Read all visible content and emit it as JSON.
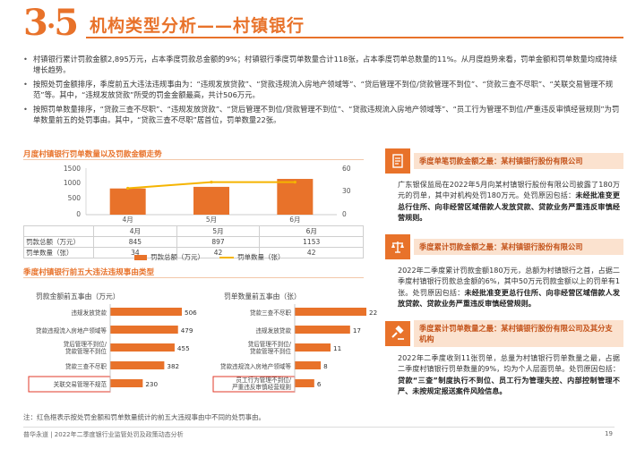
{
  "header": {
    "section_number": "3",
    "section_sub": "5",
    "title": "机构类型分析——村镇银行"
  },
  "bullets": [
    "村镇银行累计罚款金额2,895万元，占本季度罚款总金额的9%；村镇银行季度罚单数量合计118张，占本季度罚单总数量的11%。从月度趋势来看，罚单金额和罚单数量均成持续增长趋势。",
    "按照处罚金额排序，季度前五大违法违规事由为：“违规发放贷款”、“贷款违规流入房地产领域等”、“贷后管理不到位/贷款管理不到位”、“贷款三查不尽职”、“关联交易管理不规范”等。其中，“违规发放贷款”所受的罚金金额最高，共计506万元。",
    "按照罚单数量排序，“贷款三查不尽职”、“违规发放贷款”、“贷后管理不到位/贷款管理不到位”、“贷款违规流入房地产领域等”、“员工行为管理不到位/严重违反审慎经营规则”为罚单数量前五的处罚事由。其中，“贷款三查不尽职”居首位，罚单数量22张。"
  ],
  "trend": {
    "title": "月度村镇银行罚单数量以及罚款金额走势",
    "left_axis": [
      "1500",
      "1000",
      "500",
      "0"
    ],
    "right_axis": [
      "60",
      "30",
      "0"
    ],
    "row_label_amount": "罚款总额（万元）",
    "row_label_count": "罚单数量（张）",
    "legend_amount": "罚款总额（万元）",
    "legend_count": "罚单数量（张）"
  },
  "causes": {
    "title": "季度村镇银行前五大违法违规事由类型",
    "left_title": "罚款金额前五事由（万元）",
    "right_title": "罚单数量前五事由（张）"
  },
  "chart_data": [
    {
      "type": "bar",
      "title": "月度村镇银行罚单数量以及罚款金额走势",
      "categories": [
        "4月",
        "5月",
        "6月"
      ],
      "series": [
        {
          "name": "罚款总额（万元）",
          "kind": "bar",
          "axis": "left",
          "values": [
            845,
            897,
            1153
          ]
        },
        {
          "name": "罚单数量（张）",
          "kind": "line",
          "axis": "right",
          "values": [
            34,
            42,
            42
          ]
        }
      ],
      "ylim_left": [
        0,
        1500
      ],
      "ylim_right": [
        0,
        60
      ],
      "colors": {
        "bar": "#e8722a",
        "line": "#f5b400"
      }
    },
    {
      "type": "bar",
      "orientation": "horizontal",
      "title": "罚款金额前五事由（万元）",
      "categories": [
        "违规发放贷款",
        "贷款违规流入房地产领域等",
        "贷后管理不到位/贷款管理不到位",
        "贷款三查不尽职",
        "关联交易管理不规范"
      ],
      "values": [
        506,
        479,
        455,
        382,
        230
      ],
      "highlight": [
        4
      ],
      "xlim": [
        0,
        506
      ],
      "colors": {
        "bar": "#e8722a"
      }
    },
    {
      "type": "bar",
      "orientation": "horizontal",
      "title": "罚单数量前五事由（张）",
      "categories": [
        "贷款三查不尽职",
        "违规发放贷款",
        "贷后管理不到位/贷款管理不到位",
        "贷款违规流入房地产领域等",
        "员工行为管理不到位/严重违反审慎经营规则"
      ],
      "values": [
        22,
        17,
        11,
        8,
        6
      ],
      "highlight": [
        4
      ],
      "xlim": [
        0,
        22
      ],
      "colors": {
        "bar": "#e8722a"
      }
    }
  ],
  "note": "注：红色框表示按处罚金额和罚单数量统计的前五大违规事由中不同的处罚事由。",
  "right_panel": {
    "block1": {
      "title": "季度单笔罚款金额之最：某村镇银行股份有限公司",
      "text_plain": "广东银保监局在2022年5月向某村镇银行股份有限公司披露了180万元的罚单，其中对机构处罚180万元。处罚原因包括：",
      "text_bold": "未经批准变更总行住所、向非经营区域借款人发放贷款、贷款业务严重违反审慎经营规则。"
    },
    "block2": {
      "title": "季度累计罚款金额之最：某村镇银行股份有限公司",
      "text_plain": "2022年二季度累计罚款金额180万元，总额为村镇银行之首，占据二季度村镇银行罚款总金额的6%，其中50万元罚款金额以上的罚单有1张。处罚原因包括：",
      "text_bold": "未经批准变更总行住所、向非经营区域借款人发放贷款、贷款业务严重违反审慎经营规则。"
    },
    "block3": {
      "title": "季度累计罚单数量之最：某村镇银行股份有限公司及其分支机构",
      "text_plain": "2022年二季度收到11张罚单，总量为村镇银行罚单数量之最，占据二季度村镇银行罚单数量的9%，均为个人层面罚单。处罚原因包括：",
      "text_bold": "贷款“三查”制度执行不到位、员工行为管理失控、内部控制管理不严、未按规定报送案件风险信息。"
    }
  },
  "footer": {
    "left": "普华永道 | 2022年二季度银行业监管处罚及政策动态分析",
    "page": "19"
  }
}
